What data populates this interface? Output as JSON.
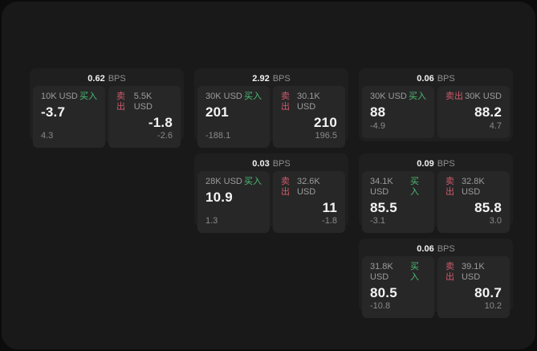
{
  "labels": {
    "buy": "买入",
    "sell": "卖出",
    "bps": "BPS"
  },
  "colors": {
    "buy": "#4bbd72",
    "sell": "#cf5a69",
    "page_bg": "#191919",
    "card_bg": "#1f1f20",
    "panel_bg": "#272728"
  },
  "cards": [
    {
      "col": 1,
      "row": 1,
      "bps": "0.62",
      "buy": {
        "amount": "10K USD",
        "price": "-3.7",
        "delta": "4.3"
      },
      "sell": {
        "amount": "5.5K USD",
        "price": "-1.8",
        "delta": "-2.6"
      }
    },
    {
      "col": 2,
      "row": 1,
      "bps": "2.92",
      "buy": {
        "amount": "30K USD",
        "price": "201",
        "delta": "-188.1"
      },
      "sell": {
        "amount": "30.1K USD",
        "price": "210",
        "delta": "196.5"
      }
    },
    {
      "col": 3,
      "row": 1,
      "bps": "0.06",
      "buy": {
        "amount": "30K USD",
        "price": "88",
        "delta": "-4.9"
      },
      "sell": {
        "amount": "30K USD",
        "price": "88.2",
        "delta": "4.7"
      }
    },
    {
      "col": 2,
      "row": 2,
      "bps": "0.03",
      "buy": {
        "amount": "28K USD",
        "price": "10.9",
        "delta": "1.3"
      },
      "sell": {
        "amount": "32.6K USD",
        "price": "11",
        "delta": "-1.8"
      }
    },
    {
      "col": 3,
      "row": 2,
      "bps": "0.09",
      "buy": {
        "amount": "34.1K USD",
        "price": "85.5",
        "delta": "-3.1"
      },
      "sell": {
        "amount": "32.8K USD",
        "price": "85.8",
        "delta": "3.0"
      }
    },
    {
      "col": 3,
      "row": 3,
      "bps": "0.06",
      "buy": {
        "amount": "31.8K USD",
        "price": "80.5",
        "delta": "-10.8"
      },
      "sell": {
        "amount": "39.1K USD",
        "price": "80.7",
        "delta": "10.2"
      }
    }
  ]
}
